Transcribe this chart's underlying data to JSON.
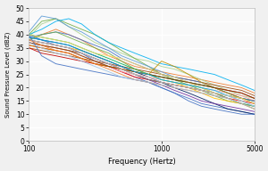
{
  "title": "",
  "xlabel": "Frequency (Hertz)",
  "ylabel": "Sound Pressure Level (dBZ)",
  "xlim_log": [
    100,
    5000
  ],
  "ylim": [
    0,
    50
  ],
  "yticks": [
    0,
    5,
    10,
    15,
    20,
    25,
    30,
    35,
    40,
    45,
    50
  ],
  "xtick_labels": [
    "100",
    "1000",
    "5000"
  ],
  "xtick_positions": [
    100,
    1000,
    5000
  ],
  "plot_bg": "#f9f9f9",
  "fig_bg": "#f0f0f0",
  "grid_color": "#ffffff",
  "frequencies": [
    100,
    125,
    160,
    200,
    250,
    315,
    400,
    500,
    630,
    800,
    1000,
    1250,
    1600,
    2000,
    2500,
    3150,
    4000,
    5000
  ],
  "series": [
    {
      "color": "#4472c4",
      "values": [
        40,
        38,
        36,
        35,
        33,
        30,
        28,
        26,
        24,
        22,
        20,
        18,
        16,
        14,
        13,
        12,
        11,
        10
      ]
    },
    {
      "color": "#ed7d31",
      "values": [
        38,
        40,
        42,
        40,
        38,
        35,
        32,
        30,
        28,
        27,
        26,
        25,
        24,
        23,
        22,
        21,
        20,
        18
      ]
    },
    {
      "color": "#a9d18e",
      "values": [
        39,
        44,
        46,
        43,
        40,
        37,
        35,
        33,
        31,
        30,
        28,
        27,
        25,
        23,
        21,
        19,
        17,
        16
      ]
    },
    {
      "color": "#ff0000",
      "values": [
        36,
        35,
        34,
        33,
        31,
        29,
        28,
        26,
        24,
        23,
        22,
        21,
        20,
        19,
        18,
        16,
        15,
        14
      ]
    },
    {
      "color": "#70ad47",
      "values": [
        40,
        45,
        46,
        44,
        42,
        40,
        37,
        34,
        31,
        28,
        25,
        23,
        21,
        19,
        17,
        15,
        14,
        13
      ]
    },
    {
      "color": "#ffc000",
      "values": [
        38,
        37,
        36,
        35,
        34,
        32,
        30,
        28,
        26,
        25,
        23,
        22,
        20,
        18,
        16,
        15,
        14,
        12
      ]
    },
    {
      "color": "#9e480e",
      "values": [
        35,
        34,
        33,
        32,
        31,
        30,
        29,
        28,
        27,
        26,
        25,
        24,
        23,
        22,
        21,
        20,
        19,
        17
      ]
    },
    {
      "color": "#843c0c",
      "values": [
        37,
        36,
        35,
        34,
        33,
        31,
        29,
        27,
        25,
        23,
        22,
        21,
        20,
        19,
        18,
        17,
        16,
        15
      ]
    },
    {
      "color": "#00b0f0",
      "values": [
        40,
        42,
        45,
        46,
        44,
        40,
        37,
        35,
        33,
        31,
        29,
        28,
        27,
        26,
        25,
        23,
        21,
        19
      ]
    },
    {
      "color": "#002060",
      "values": [
        39,
        38,
        37,
        36,
        34,
        32,
        30,
        28,
        26,
        24,
        22,
        20,
        18,
        16,
        14,
        12,
        11,
        10
      ]
    },
    {
      "color": "#7030a0",
      "values": [
        38,
        37,
        36,
        35,
        33,
        31,
        29,
        27,
        25,
        23,
        21,
        19,
        17,
        15,
        14,
        13,
        12,
        11
      ]
    },
    {
      "color": "#c00000",
      "values": [
        35,
        33,
        32,
        31,
        30,
        29,
        28,
        27,
        26,
        25,
        24,
        23,
        22,
        21,
        20,
        19,
        18,
        16
      ]
    },
    {
      "color": "#00b050",
      "values": [
        40,
        39,
        38,
        37,
        35,
        33,
        31,
        29,
        27,
        25,
        24,
        23,
        22,
        21,
        20,
        18,
        16,
        15
      ]
    },
    {
      "color": "#ff9999",
      "values": [
        37,
        36,
        35,
        34,
        32,
        30,
        28,
        26,
        25,
        24,
        23,
        22,
        21,
        20,
        19,
        18,
        17,
        15
      ]
    },
    {
      "color": "#4472c4",
      "values": [
        39,
        40,
        41,
        40,
        38,
        36,
        34,
        31,
        29,
        27,
        25,
        24,
        23,
        22,
        20,
        18,
        16,
        15
      ]
    },
    {
      "color": "#5b9bd5",
      "values": [
        41,
        47,
        46,
        43,
        41,
        38,
        35,
        32,
        30,
        28,
        26,
        24,
        22,
        20,
        18,
        16,
        14,
        13
      ]
    },
    {
      "color": "#bf8f00",
      "values": [
        36,
        35,
        34,
        33,
        31,
        29,
        28,
        27,
        26,
        25,
        30,
        28,
        25,
        22,
        20,
        18,
        16,
        14
      ]
    },
    {
      "color": "#808080",
      "values": [
        38,
        37,
        36,
        35,
        33,
        31,
        29,
        27,
        25,
        23,
        22,
        21,
        20,
        19,
        18,
        17,
        16,
        14
      ]
    },
    {
      "color": "#70ad47",
      "values": [
        38,
        40,
        41,
        39,
        37,
        35,
        33,
        30,
        27,
        25,
        23,
        22,
        21,
        20,
        18,
        16,
        14,
        13
      ]
    },
    {
      "color": "#ffd966",
      "values": [
        40,
        39,
        38,
        37,
        35,
        33,
        32,
        31,
        29,
        27,
        25,
        24,
        22,
        20,
        18,
        17,
        16,
        14
      ]
    },
    {
      "color": "#833c00",
      "values": [
        37,
        36,
        35,
        34,
        32,
        30,
        28,
        27,
        26,
        25,
        24,
        23,
        22,
        21,
        20,
        19,
        18,
        16
      ]
    },
    {
      "color": "#00b0f0",
      "values": [
        39,
        38,
        37,
        36,
        34,
        32,
        30,
        28,
        26,
        25,
        23,
        22,
        21,
        20,
        19,
        17,
        15,
        13
      ]
    },
    {
      "color": "#c9c9c9",
      "values": [
        38,
        37,
        36,
        35,
        33,
        31,
        29,
        27,
        25,
        24,
        22,
        21,
        20,
        19,
        18,
        17,
        15,
        13
      ]
    },
    {
      "color": "#4472c4",
      "values": [
        40,
        32,
        29,
        28,
        27,
        26,
        25,
        24,
        23,
        22,
        20,
        18,
        15,
        13,
        12,
        11,
        10,
        10
      ]
    },
    {
      "color": "#ed7d31",
      "values": [
        38,
        36,
        34,
        33,
        31,
        29,
        27,
        25,
        23,
        22,
        21,
        20,
        19,
        18,
        17,
        16,
        14,
        12
      ]
    },
    {
      "color": "#9dc3e6",
      "values": [
        37,
        35,
        33,
        32,
        30,
        28,
        26,
        24,
        23,
        22,
        21,
        20,
        19,
        18,
        17,
        16,
        14,
        12
      ]
    }
  ]
}
